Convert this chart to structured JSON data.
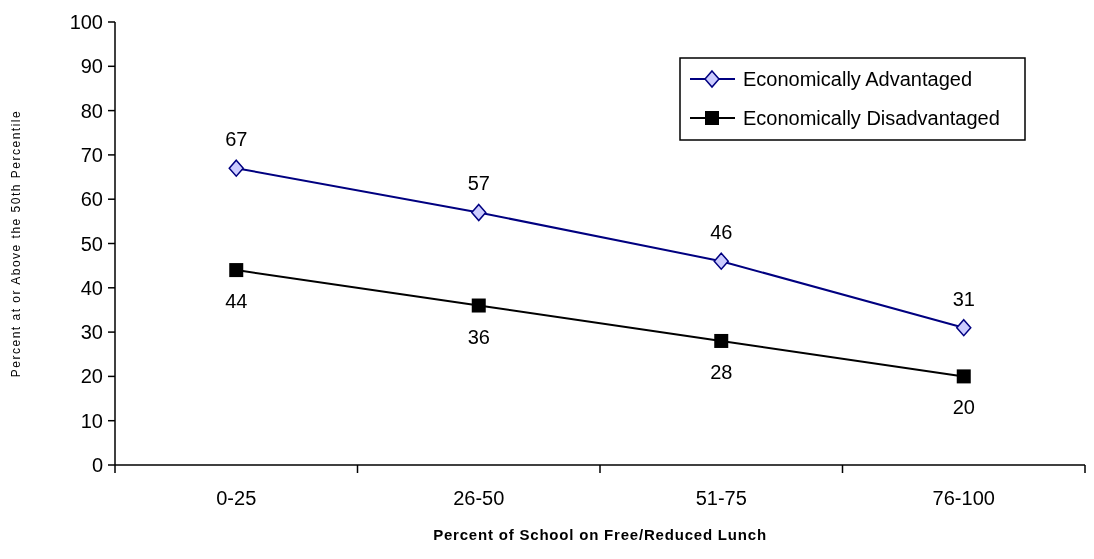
{
  "chart_data": {
    "type": "line",
    "xlabel": "Percent of School on Free/Reduced Lunch",
    "ylabel": "Percent at or Above the 50th Percentile",
    "categories": [
      "0-25",
      "26-50",
      "51-75",
      "76-100"
    ],
    "series": [
      {
        "name": "Economically Advantaged",
        "color": "#000080",
        "marker": "diamond",
        "values": [
          67,
          57,
          46,
          31
        ]
      },
      {
        "name": "Economically Disadvantaged",
        "color": "#000000",
        "marker": "square",
        "values": [
          44,
          36,
          28,
          20
        ]
      }
    ],
    "ylim": [
      0,
      100
    ],
    "yticks": [
      0,
      10,
      20,
      30,
      40,
      50,
      60,
      70,
      80,
      90,
      100
    ],
    "grid": false,
    "legend": "top right",
    "data_labels": true
  }
}
